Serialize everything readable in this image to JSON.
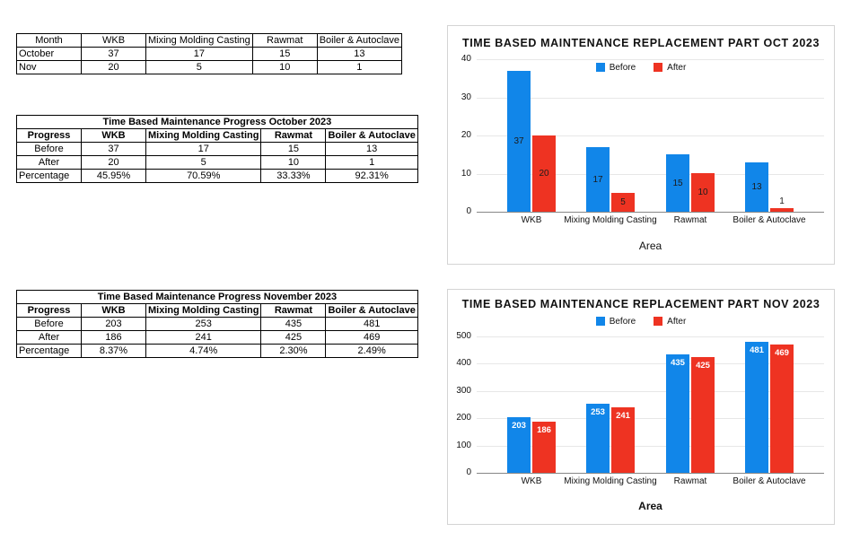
{
  "tables": [
    {
      "headers": [
        "Month",
        "WKB",
        "Mixing Molding Casting",
        "Rawmat",
        "Boiler & Autoclave"
      ],
      "rows": [
        {
          "label": "October",
          "values": [
            "37",
            "17",
            "15",
            "13"
          ]
        },
        {
          "label": "Nov",
          "values": [
            "20",
            "5",
            "10",
            "1"
          ]
        }
      ]
    },
    {
      "title": "Time Based Maintenance Progress October 2023",
      "headers": [
        "Progress",
        "WKB",
        "Mixing Molding Casting",
        "Rawmat",
        "Boiler & Autoclave"
      ],
      "rows": [
        {
          "label": "Before",
          "values": [
            "37",
            "17",
            "15",
            "13"
          ]
        },
        {
          "label": "After",
          "values": [
            "20",
            "5",
            "10",
            "1"
          ]
        },
        {
          "label": "Percentage",
          "values": [
            "45.95%",
            "70.59%",
            "33.33%",
            "92.31%"
          ]
        }
      ]
    },
    {
      "title": "Time Based Maintenance Progress November 2023",
      "headers": [
        "Progress",
        "WKB",
        "Mixing Molding Casting",
        "Rawmat",
        "Boiler & Autoclave"
      ],
      "rows": [
        {
          "label": "Before",
          "values": [
            "203",
            "253",
            "435",
            "481"
          ]
        },
        {
          "label": "After",
          "values": [
            "186",
            "241",
            "425",
            "469"
          ]
        },
        {
          "label": "Percentage",
          "values": [
            "8.37%",
            "4.74%",
            "2.30%",
            "2.49%"
          ]
        }
      ]
    }
  ],
  "chart_data": [
    {
      "type": "bar",
      "title": "TIME BASED MAINTENANCE REPLACEMENT PART OCT 2023",
      "categories": [
        "WKB",
        "Mixing Molding Casting",
        "Rawmat",
        "Boiler & Autoclave"
      ],
      "series": [
        {
          "name": "Before",
          "color": "#1186e9",
          "values": [
            37,
            17,
            15,
            13
          ]
        },
        {
          "name": "After",
          "color": "#ee3322",
          "values": [
            20,
            5,
            10,
            1
          ]
        }
      ],
      "xlabel": "Area",
      "ylim": [
        0,
        40
      ],
      "ytick": 10,
      "grid": true,
      "legend_position": "top-center",
      "label_placement": "center",
      "label_color": "#1b1b1b",
      "xlabel_bold": false
    },
    {
      "type": "bar",
      "title": "TIME BASED MAINTENANCE REPLACEMENT PART NOV 2023",
      "categories": [
        "WKB",
        "Mixing Molding Casting",
        "Rawmat",
        "Boiler & Autoclave"
      ],
      "series": [
        {
          "name": "Before",
          "color": "#1186e9",
          "values": [
            203,
            253,
            435,
            481
          ]
        },
        {
          "name": "After",
          "color": "#ee3322",
          "values": [
            186,
            241,
            425,
            469
          ]
        }
      ],
      "xlabel": "Area",
      "ylim": [
        0,
        500
      ],
      "ytick": 100,
      "grid": true,
      "legend_position": "top-center",
      "label_placement": "inside-top",
      "label_color": "#ffffff",
      "xlabel_bold": true
    }
  ]
}
